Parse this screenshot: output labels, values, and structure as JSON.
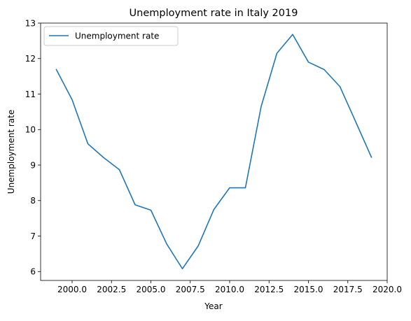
{
  "chart_data": {
    "type": "line",
    "title": "Unemployment rate in Italy 2019",
    "xlabel": "Year",
    "ylabel": "Unemployment rate",
    "xlim": [
      1998.0,
      2020.0
    ],
    "ylim": [
      5.75,
      13.0
    ],
    "x_ticks": [
      2000.0,
      2002.5,
      2005.0,
      2007.5,
      2010.0,
      2012.5,
      2015.0,
      2017.5,
      2020.0
    ],
    "x_tick_labels": [
      "2000.0",
      "2002.5",
      "2005.0",
      "2007.5",
      "2010.0",
      "2012.5",
      "2015.0",
      "2017.5",
      "2020.0"
    ],
    "y_ticks": [
      6,
      7,
      8,
      9,
      10,
      11,
      12,
      13
    ],
    "y_tick_labels": [
      "6",
      "7",
      "8",
      "9",
      "10",
      "11",
      "12",
      "13"
    ],
    "legend_position": "top-left",
    "grid": false,
    "series": [
      {
        "name": "Unemployment rate",
        "color": "#1f77b4",
        "x": [
          1999,
          2000,
          2001,
          2002,
          2003,
          2004,
          2005,
          2006,
          2007,
          2008,
          2009,
          2010,
          2011,
          2012,
          2013,
          2014,
          2015,
          2016,
          2017,
          2018,
          2019
        ],
        "y": [
          11.69,
          10.84,
          9.6,
          9.21,
          8.87,
          7.88,
          7.73,
          6.78,
          6.08,
          6.72,
          7.75,
          8.36,
          8.36,
          10.65,
          12.15,
          12.68,
          11.9,
          11.69,
          11.21,
          10.22,
          9.22
        ]
      }
    ]
  }
}
